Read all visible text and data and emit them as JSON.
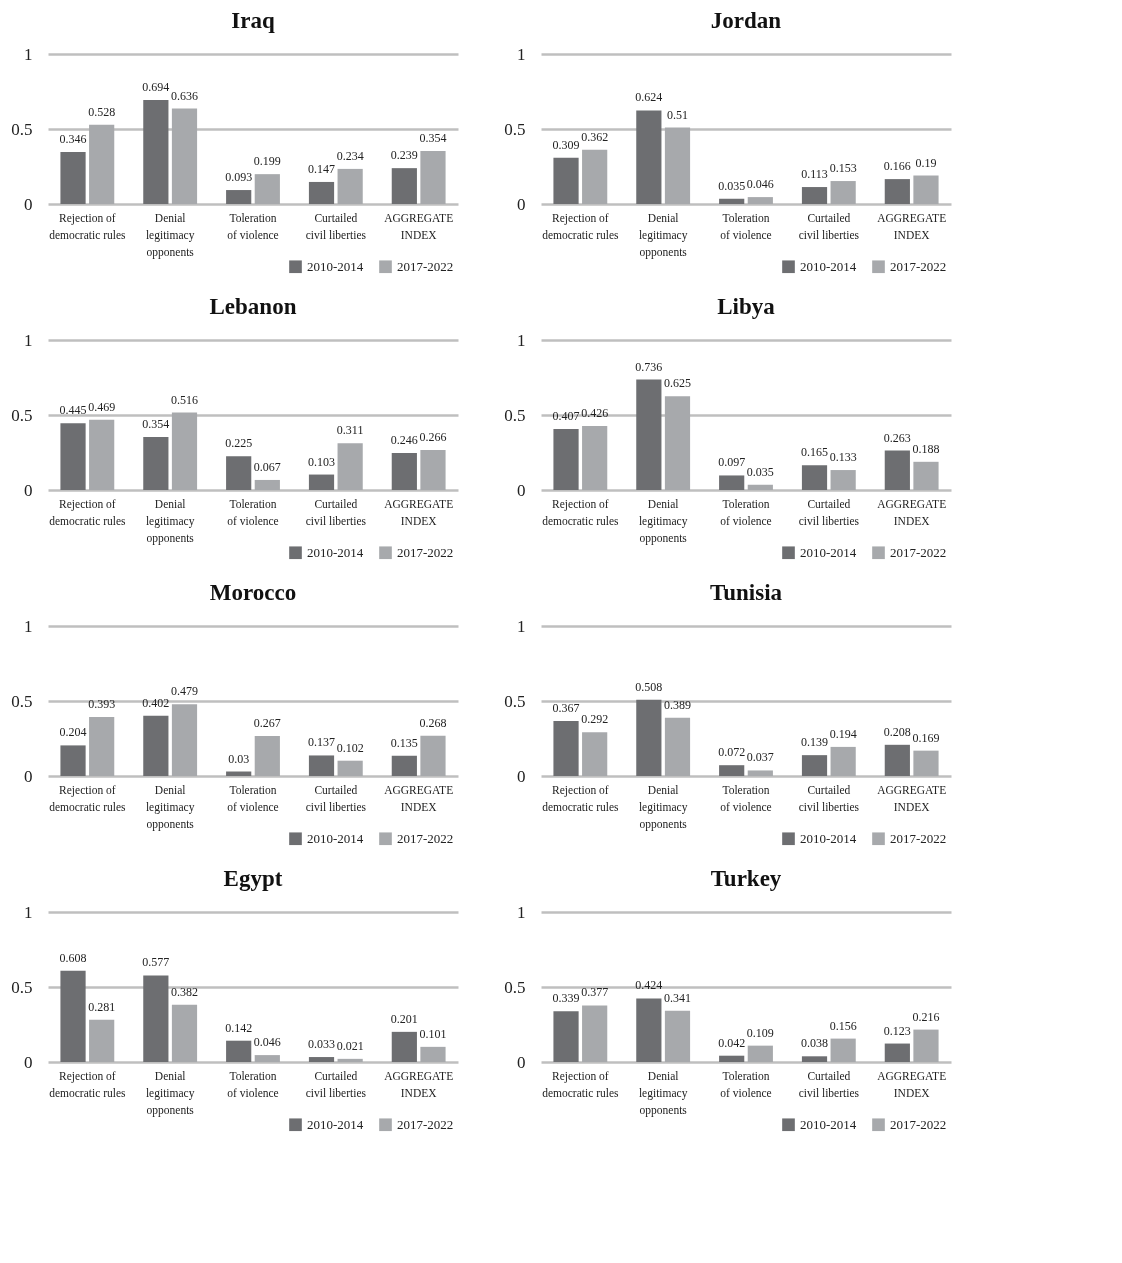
{
  "chart_data": [
    {
      "type": "bar",
      "title": "Iraq",
      "categories": [
        "Rejection of\ndemocratic rules",
        "Denial\nlegitimacy\nopponents",
        "Toleration\nof violence",
        "Curtailed\ncivil liberties",
        "AGGREGATE\nINDEX"
      ],
      "series": [
        {
          "name": "2010-2014",
          "color": "#6d6e71",
          "values": [
            0.346,
            0.694,
            0.093,
            0.147,
            0.239
          ]
        },
        {
          "name": "2017-2022",
          "color": "#a7a9ac",
          "values": [
            0.528,
            0.636,
            0.199,
            0.234,
            0.354
          ]
        }
      ],
      "ylim": [
        0,
        1
      ],
      "yticks": [
        0,
        0.5,
        1
      ],
      "grid": "y",
      "legend": "bottom right",
      "data_labels": true
    },
    {
      "type": "bar",
      "title": "Jordan",
      "categories": [
        "Rejection of\ndemocratic rules",
        "Denial\nlegitimacy\nopponents",
        "Toleration\nof violence",
        "Curtailed\ncivil liberties",
        "AGGREGATE\nINDEX"
      ],
      "series": [
        {
          "name": "2010-2014",
          "color": "#6d6e71",
          "values": [
            0.309,
            0.624,
            0.035,
            0.113,
            0.166
          ]
        },
        {
          "name": "2017-2022",
          "color": "#a7a9ac",
          "values": [
            0.362,
            0.51,
            0.046,
            0.153,
            0.19
          ]
        }
      ],
      "ylim": [
        0,
        1
      ],
      "yticks": [
        0,
        0.5,
        1
      ],
      "grid": "y",
      "legend": "bottom right",
      "data_labels": true
    },
    {
      "type": "bar",
      "title": "Lebanon",
      "categories": [
        "Rejection of\ndemocratic rules",
        "Denial\nlegitimacy\nopponents",
        "Toleration\nof violence",
        "Curtailed\ncivil liberties",
        "AGGREGATE\nINDEX"
      ],
      "series": [
        {
          "name": "2010-2014",
          "color": "#6d6e71",
          "values": [
            0.445,
            0.354,
            0.225,
            0.103,
            0.246
          ]
        },
        {
          "name": "2017-2022",
          "color": "#a7a9ac",
          "values": [
            0.469,
            0.516,
            0.067,
            0.311,
            0.266
          ]
        }
      ],
      "ylim": [
        0,
        1
      ],
      "yticks": [
        0,
        0.5,
        1
      ],
      "grid": "y",
      "legend": "bottom right",
      "data_labels": true
    },
    {
      "type": "bar",
      "title": "Libya",
      "categories": [
        "Rejection of\ndemocratic rules",
        "Denial\nlegitimacy\nopponents",
        "Toleration\nof violence",
        "Curtailed\ncivil liberties",
        "AGGREGATE\nINDEX"
      ],
      "series": [
        {
          "name": "2010-2014",
          "color": "#6d6e71",
          "values": [
            0.407,
            0.736,
            0.097,
            0.165,
            0.263
          ]
        },
        {
          "name": "2017-2022",
          "color": "#a7a9ac",
          "values": [
            0.426,
            0.625,
            0.035,
            0.133,
            0.188
          ]
        }
      ],
      "ylim": [
        0,
        1
      ],
      "yticks": [
        0,
        0.5,
        1
      ],
      "grid": "y",
      "legend": "bottom right",
      "data_labels": true
    },
    {
      "type": "bar",
      "title": "Morocco",
      "categories": [
        "Rejection of\ndemocratic rules",
        "Denial\nlegitimacy\nopponents",
        "Toleration\nof violence",
        "Curtailed\ncivil liberties",
        "AGGREGATE\nINDEX"
      ],
      "series": [
        {
          "name": "2010-2014",
          "color": "#6d6e71",
          "values": [
            0.204,
            0.402,
            0.03,
            0.137,
            0.135
          ]
        },
        {
          "name": "2017-2022",
          "color": "#a7a9ac",
          "values": [
            0.393,
            0.479,
            0.267,
            0.102,
            0.268
          ]
        }
      ],
      "ylim": [
        0,
        1
      ],
      "yticks": [
        0,
        0.5,
        1
      ],
      "grid": "y",
      "legend": "bottom right",
      "data_labels": true
    },
    {
      "type": "bar",
      "title": "Tunisia",
      "categories": [
        "Rejection of\ndemocratic rules",
        "Denial\nlegitimacy\nopponents",
        "Toleration\nof violence",
        "Curtailed\ncivil liberties",
        "AGGREGATE\nINDEX"
      ],
      "series": [
        {
          "name": "2010-2014",
          "color": "#6d6e71",
          "values": [
            0.367,
            0.508,
            0.072,
            0.139,
            0.208
          ]
        },
        {
          "name": "2017-2022",
          "color": "#a7a9ac",
          "values": [
            0.292,
            0.389,
            0.037,
            0.194,
            0.169
          ]
        }
      ],
      "ylim": [
        0,
        1
      ],
      "yticks": [
        0,
        0.5,
        1
      ],
      "grid": "y",
      "legend": "bottom right",
      "data_labels": true
    },
    {
      "type": "bar",
      "title": "Egypt",
      "categories": [
        "Rejection of\ndemocratic rules",
        "Denial\nlegitimacy\nopponents",
        "Toleration\nof violence",
        "Curtailed\ncivil liberties",
        "AGGREGATE\nINDEX"
      ],
      "series": [
        {
          "name": "2010-2014",
          "color": "#6d6e71",
          "values": [
            0.608,
            0.577,
            0.142,
            0.033,
            0.201
          ]
        },
        {
          "name": "2017-2022",
          "color": "#a7a9ac",
          "values": [
            0.281,
            0.382,
            0.046,
            0.021,
            0.101
          ]
        }
      ],
      "ylim": [
        0,
        1
      ],
      "yticks": [
        0,
        0.5,
        1
      ],
      "grid": "y",
      "legend": "bottom right",
      "data_labels": true
    },
    {
      "type": "bar",
      "title": "Turkey",
      "categories": [
        "Rejection of\ndemocratic rules",
        "Denial\nlegitimacy\nopponents",
        "Toleration\nof violence",
        "Curtailed\ncivil liberties",
        "AGGREGATE\nINDEX"
      ],
      "series": [
        {
          "name": "2010-2014",
          "color": "#6d6e71",
          "values": [
            0.339,
            0.424,
            0.042,
            0.038,
            0.123
          ]
        },
        {
          "name": "2017-2022",
          "color": "#a7a9ac",
          "values": [
            0.377,
            0.341,
            0.109,
            0.156,
            0.216
          ]
        }
      ],
      "ylim": [
        0,
        1
      ],
      "yticks": [
        0,
        0.5,
        1
      ],
      "grid": "y",
      "legend": "bottom right",
      "data_labels": true
    }
  ]
}
